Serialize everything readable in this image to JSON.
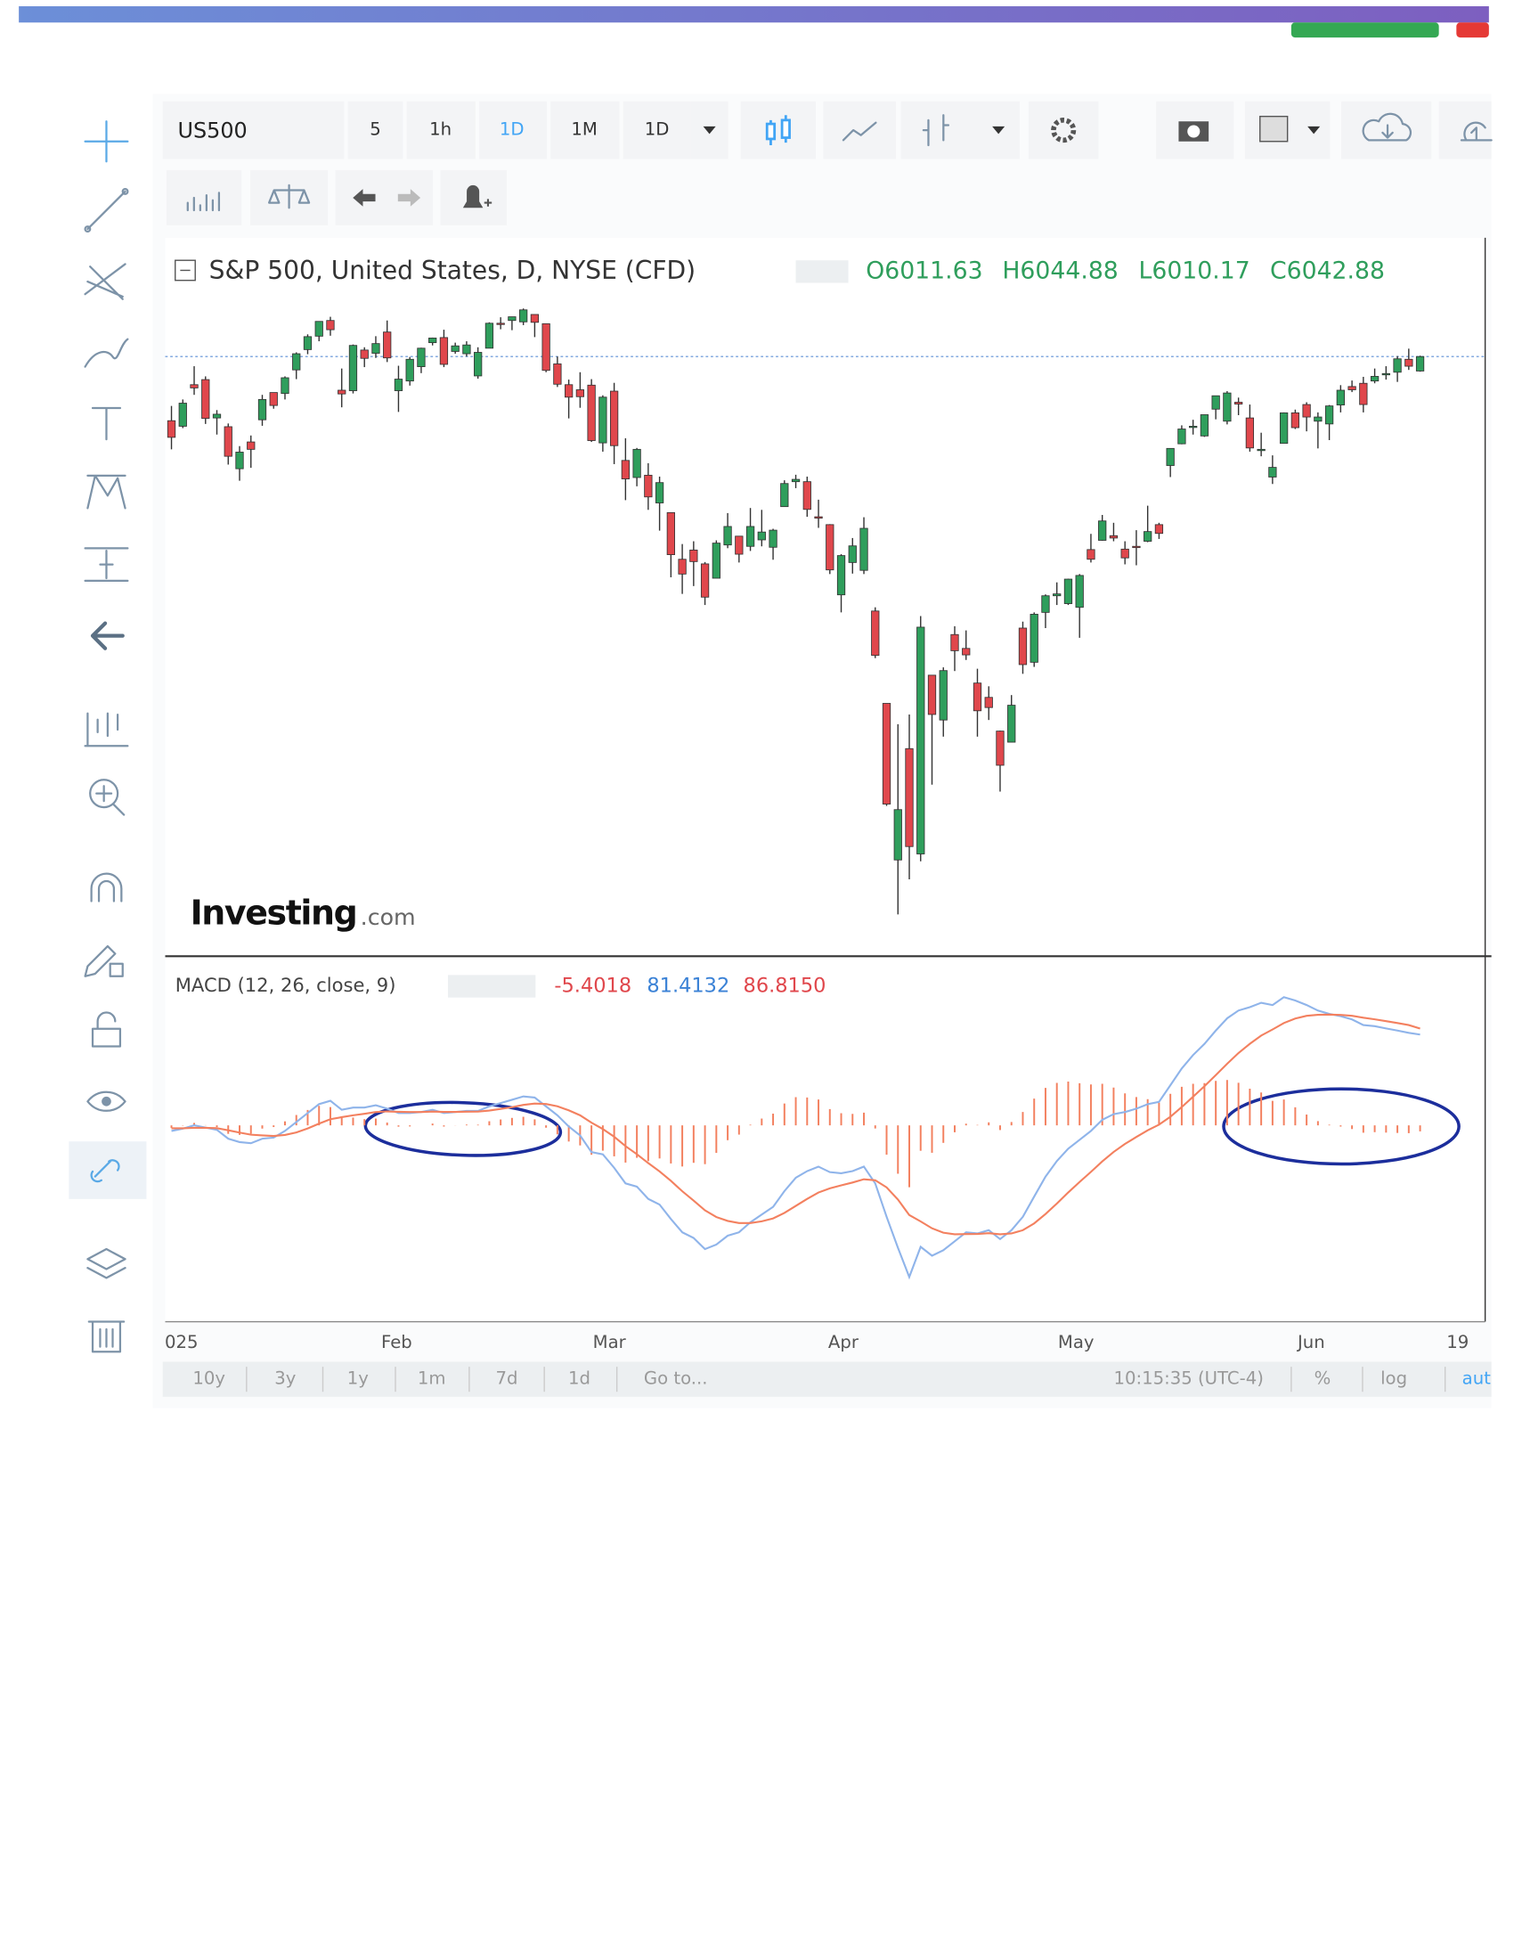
{
  "toolbar": {
    "symbol": "US500",
    "intervals": [
      "5",
      "1h",
      "1D",
      "1M",
      "1D"
    ]
  },
  "watermark": [
    "Investing",
    ".com"
  ],
  "time_axis": [
    "025",
    "Feb",
    "Mar",
    "Apr",
    "May",
    "Jun",
    "19"
  ],
  "bottom_bar": {
    "ranges": [
      "10y",
      "3y",
      "1y",
      "1m",
      "7d",
      "1d",
      "Go to..."
    ],
    "time": "10:15:35 (UTC-4)",
    "options": [
      "%",
      "log",
      "aut"
    ]
  },
  "chart_data": [
    {
      "type": "candlestick",
      "title": "S&P 500, United States, D, NYSE (CFD)",
      "ohlc": [
        "O6011.63",
        "H6044.88",
        "L6010.17",
        "C6042.88"
      ],
      "up_color": "#2f9e5c",
      "down_color": "#e0474c",
      "ylim": [
        4750,
        6300
      ],
      "candles": [
        [
          5904,
          5936,
          5842,
          5868
        ],
        [
          5892,
          5950,
          5888,
          5942
        ],
        [
          5982,
          6022,
          5960,
          5975
        ],
        [
          5993,
          6000,
          5897,
          5909
        ],
        [
          5910,
          5927,
          5874,
          5918
        ],
        [
          5891,
          5898,
          5809,
          5827
        ],
        [
          5800,
          5849,
          5774,
          5836
        ],
        [
          5858,
          5872,
          5802,
          5842
        ],
        [
          5906,
          5960,
          5893,
          5950
        ],
        [
          5965,
          5965,
          5930,
          5937
        ],
        [
          5963,
          6000,
          5950,
          5997
        ],
        [
          6014,
          6052,
          5994,
          6049
        ],
        [
          6058,
          6091,
          6048,
          6086
        ],
        [
          6087,
          6119,
          6076,
          6119
        ],
        [
          6121,
          6129,
          6088,
          6101
        ],
        [
          5970,
          6017,
          5933,
          5962
        ],
        [
          5969,
          6069,
          5963,
          6067
        ],
        [
          6057,
          6063,
          6020,
          6039
        ],
        [
          6050,
          6087,
          6040,
          6071
        ],
        [
          6096,
          6121,
          6031,
          6040
        ],
        [
          5969,
          6023,
          5923,
          5994
        ],
        [
          5990,
          6042,
          5980,
          6037
        ],
        [
          6021,
          6062,
          6007,
          6061
        ],
        [
          6073,
          6084,
          6067,
          6083
        ],
        [
          6084,
          6101,
          6020,
          6026
        ],
        [
          6054,
          6073,
          6049,
          6066
        ],
        [
          6049,
          6076,
          6043,
          6068
        ],
        [
          6001,
          6063,
          5995,
          6052
        ],
        [
          6061,
          6117,
          6061,
          6115
        ],
        [
          6115,
          6128,
          6102,
          6114
        ],
        [
          6121,
          6129,
          6100,
          6129
        ],
        [
          6118,
          6147,
          6111,
          6144
        ],
        [
          6134,
          6134,
          6085,
          6117
        ],
        [
          6114,
          6114,
          6009,
          6013
        ],
        [
          6027,
          6043,
          5977,
          5983
        ],
        [
          5982,
          5993,
          5909,
          5955
        ],
        [
          5971,
          6009,
          5932,
          5956
        ],
        [
          5981,
          5994,
          5858,
          5861
        ],
        [
          5856,
          5959,
          5837,
          5955
        ],
        [
          5968,
          5986,
          5810,
          5850
        ],
        [
          5818,
          5866,
          5732,
          5778
        ],
        [
          5781,
          5845,
          5762,
          5842
        ],
        [
          5786,
          5812,
          5711,
          5739
        ],
        [
          5726,
          5783,
          5666,
          5770
        ],
        [
          5705,
          5705,
          5565,
          5614
        ],
        [
          5604,
          5637,
          5529,
          5572
        ],
        [
          5624,
          5643,
          5546,
          5599
        ],
        [
          5594,
          5598,
          5505,
          5522
        ],
        [
          5563,
          5645,
          5563,
          5639
        ],
        [
          5635,
          5704,
          5628,
          5675
        ],
        [
          5654,
          5654,
          5597,
          5615
        ],
        [
          5632,
          5715,
          5622,
          5675
        ],
        [
          5646,
          5711,
          5632,
          5663
        ],
        [
          5630,
          5670,
          5603,
          5667
        ],
        [
          5718,
          5775,
          5718,
          5768
        ],
        [
          5772,
          5787,
          5758,
          5777
        ],
        [
          5772,
          5783,
          5696,
          5712
        ],
        [
          5696,
          5733,
          5672,
          5693
        ],
        [
          5679,
          5680,
          5572,
          5581
        ],
        [
          5527,
          5615,
          5489,
          5612
        ],
        [
          5597,
          5650,
          5573,
          5633
        ],
        [
          5580,
          5695,
          5572,
          5671
        ],
        [
          5492,
          5500,
          5390,
          5396
        ],
        [
          5292,
          5292,
          5070,
          5074
        ],
        [
          4953,
          5247,
          4835,
          5062
        ],
        [
          5194,
          5268,
          4911,
          4982
        ],
        [
          4966,
          5481,
          4950,
          5457
        ],
        [
          5353,
          5353,
          5116,
          5268
        ],
        [
          5256,
          5370,
          5220,
          5363
        ],
        [
          5441,
          5459,
          5362,
          5406
        ],
        [
          5411,
          5450,
          5386,
          5397
        ],
        [
          5336,
          5367,
          5220,
          5276
        ],
        [
          5305,
          5329,
          5256,
          5283
        ],
        [
          5232,
          5233,
          5101,
          5158
        ],
        [
          5208,
          5310,
          5208,
          5288
        ],
        [
          5455,
          5469,
          5356,
          5376
        ],
        [
          5381,
          5489,
          5371,
          5485
        ],
        [
          5489,
          5528,
          5455,
          5525
        ],
        [
          5525,
          5554,
          5505,
          5529
        ],
        [
          5508,
          5562,
          5505,
          5561
        ],
        [
          5500,
          5572,
          5434,
          5569
        ],
        [
          5625,
          5659,
          5597,
          5604
        ],
        [
          5645,
          5700,
          5644,
          5687
        ],
        [
          5655,
          5683,
          5643,
          5650
        ],
        [
          5626,
          5643,
          5593,
          5607
        ],
        [
          5632,
          5667,
          5591,
          5631
        ],
        [
          5643,
          5720,
          5641,
          5664
        ],
        [
          5679,
          5683,
          5648,
          5660
        ],
        [
          5807,
          5844,
          5782,
          5844
        ],
        [
          5854,
          5894,
          5853,
          5886
        ],
        [
          5891,
          5906,
          5874,
          5892
        ],
        [
          5871,
          5917,
          5869,
          5917
        ],
        [
          5929,
          5958,
          5907,
          5958
        ],
        [
          5903,
          5968,
          5896,
          5964
        ],
        [
          5944,
          5954,
          5916,
          5940
        ],
        [
          5910,
          5939,
          5837,
          5845
        ],
        [
          5841,
          5878,
          5827,
          5842
        ],
        [
          5782,
          5829,
          5767,
          5803
        ],
        [
          5855,
          5922,
          5855,
          5921
        ],
        [
          5921,
          5928,
          5886,
          5889
        ],
        [
          5939,
          5944,
          5881,
          5912
        ],
        [
          5903,
          5922,
          5844,
          5912
        ],
        [
          5897,
          5938,
          5862,
          5936
        ],
        [
          5938,
          5981,
          5922,
          5970
        ],
        [
          5978,
          5991,
          5966,
          5971
        ],
        [
          5985,
          5999,
          5922,
          5939
        ],
        [
          5990,
          6017,
          5985,
          6000
        ],
        [
          6005,
          6022,
          5993,
          6006
        ],
        [
          6009,
          6044,
          5988,
          6038
        ],
        [
          6037,
          6060,
          6014,
          6022
        ],
        [
          6011.63,
          6044.88,
          6010.17,
          6042.88
        ]
      ]
    },
    {
      "type": "macd",
      "title": "MACD (12, 26, close, 9)",
      "legend_values": [
        "-5.4018",
        "81.4132",
        "86.8150"
      ],
      "legend_colors": [
        "#e0474c",
        "#3b82d6",
        "#e0474c"
      ],
      "ylim": [
        -175,
        145
      ],
      "series": [
        {
          "name": "MACD",
          "color": "#8fb4ea",
          "values": [
            -5,
            -3,
            0,
            -2,
            -4,
            -12,
            -15,
            -16,
            -12,
            -11,
            -5,
            3,
            11,
            19,
            22,
            14,
            16,
            16,
            18,
            15,
            11,
            11,
            12,
            14,
            11,
            12,
            13,
            13,
            17,
            20,
            23,
            26,
            25,
            17,
            9,
            -1,
            -9,
            -24,
            -26,
            -38,
            -52,
            -55,
            -66,
            -71,
            -84,
            -96,
            -101,
            -111,
            -107,
            -99,
            -96,
            -87,
            -80,
            -73,
            -59,
            -47,
            -41,
            -37,
            -42,
            -43,
            -41,
            -37,
            -52,
            -82,
            -110,
            -136,
            -109,
            -117,
            -112,
            -104,
            -96,
            -97,
            -94,
            -102,
            -94,
            -82,
            -64,
            -46,
            -32,
            -21,
            -13,
            -5,
            5,
            10,
            12,
            15,
            19,
            21,
            36,
            51,
            63,
            73,
            85,
            96,
            103,
            106,
            110,
            108,
            115,
            112,
            108,
            103,
            100,
            98,
            95,
            90,
            89,
            87,
            85,
            83,
            81.4132
          ]
        },
        {
          "name": "Signal",
          "color": "#f3805f",
          "values": [
            -2.6,
            -2.7,
            -2.2,
            -2.2,
            -2.5,
            -4.4,
            -6.5,
            -8.4,
            -9.1,
            -9.5,
            -8.6,
            -6.3,
            -2.8,
            1.5,
            5.6,
            7.3,
            9,
            10.4,
            11.9,
            12.5,
            12.2,
            12,
            12,
            12.4,
            12.1,
            12.1,
            12.3,
            12.4,
            13.3,
            14.7,
            16.3,
            18.3,
            19.6,
            19.1,
            17.1,
            13.5,
            9,
            2.4,
            -3.3,
            -10.2,
            -18.6,
            -25.9,
            -33.9,
            -41.3,
            -49.8,
            -59.1,
            -67.4,
            -76.2,
            -82.3,
            -85.7,
            -87.7,
            -87.6,
            -86.1,
            -83.5,
            -78.6,
            -72.3,
            -66,
            -60.2,
            -56.6,
            -53.9,
            -51.3,
            -48.4,
            -49.2,
            -55.7,
            -66.6,
            -80.5,
            -86.2,
            -92.4,
            -96.3,
            -97.8,
            -97.5,
            -97.4,
            -96.7,
            -97.8,
            -97,
            -94,
            -88,
            -79.6,
            -70.1,
            -60.3,
            -50.8,
            -41.7,
            -32.3,
            -23.9,
            -16.7,
            -10.4,
            -4.5,
            0.6,
            7.7,
            16.4,
            25.7,
            35.1,
            45.1,
            55.3,
            64.8,
            73.1,
            80.5,
            86,
            91.8,
            95.8,
            98.3,
            99.2,
            99.4,
            99.1,
            98.3,
            96.6,
            95.1,
            93.5,
            91.8,
            90,
            86.815
          ]
        },
        {
          "name": "Histogram",
          "color": "#f3805f",
          "values": [
            -2.4,
            -0.3,
            2.2,
            0.2,
            -1.5,
            -7.6,
            -8.5,
            -7.6,
            -2.9,
            -1.5,
            3.6,
            9.3,
            13.8,
            17.5,
            16.4,
            6.7,
            7,
            5.6,
            6.1,
            2.5,
            -1.2,
            -1,
            0,
            1.6,
            -1.1,
            -0.1,
            0.7,
            0.6,
            3.7,
            5.3,
            6.7,
            7.7,
            5.4,
            -2.1,
            -8.1,
            -14.5,
            -18,
            -26.4,
            -22.7,
            -27.8,
            -33.4,
            -29.1,
            -32.1,
            -29.7,
            -34.2,
            -36.9,
            -33.6,
            -34.8,
            -24.7,
            -13.3,
            -8.3,
            0.6,
            6.1,
            10.5,
            19.6,
            25.3,
            25,
            23.2,
            14.6,
            10.9,
            10.3,
            11.4,
            -2.8,
            -26.3,
            -43.4,
            -55.5,
            -22.8,
            -24.6,
            -15.7,
            -6.2,
            1.5,
            0.4,
            2.7,
            -4.2,
            3,
            12,
            24,
            33.6,
            38.1,
            39.3,
            37.8,
            36.7,
            37.3,
            33.9,
            28.7,
            25.4,
            23.5,
            20.4,
            28.3,
            34.6,
            37.3,
            37.9,
            39.9,
            40.7,
            38.2,
            32.9,
            29.5,
            22,
            23.2,
            16.2,
            9.7,
            3.8,
            0.6,
            -1.1,
            -3.3,
            -6.6,
            -6.1,
            -6.5,
            -6.8,
            -7,
            -5.4018
          ]
        }
      ]
    }
  ]
}
